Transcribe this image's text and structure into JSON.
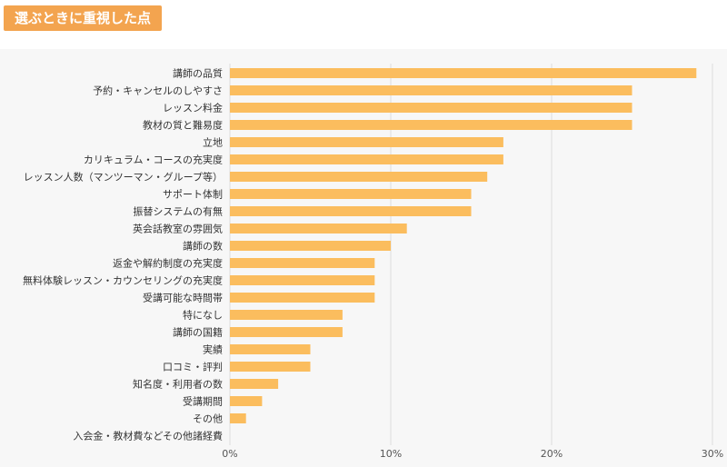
{
  "title": "選ぶときに重視した点",
  "colors": {
    "bar": "#fbbd5e",
    "title_bg": "#f3a44f",
    "grid": "#dddddd"
  },
  "chart_data": {
    "type": "bar",
    "orientation": "horizontal",
    "categories": [
      "講師の品質",
      "予約・キャンセルのしやすさ",
      "レッスン料金",
      "教材の質と難易度",
      "立地",
      "カリキュラム・コースの充実度",
      "レッスン人数（マンツーマン・グループ等）",
      "サポート体制",
      "振替システムの有無",
      "英会話教室の雰囲気",
      "講師の数",
      "返金や解約制度の充実度",
      "無料体験レッスン・カウンセリングの充実度",
      "受講可能な時間帯",
      "特になし",
      "講師の国籍",
      "実績",
      "口コミ・評判",
      "知名度・利用者の数",
      "受講期間",
      "その他",
      "入会金・教材費などその他諸経費"
    ],
    "values": [
      29,
      25,
      25,
      25,
      17,
      17,
      16,
      15,
      15,
      11,
      10,
      9,
      9,
      9,
      7,
      7,
      5,
      5,
      3,
      2,
      1,
      0
    ],
    "xlim": [
      0,
      30
    ],
    "xticks": [
      0,
      10,
      20,
      30
    ],
    "xtick_labels": [
      "0%",
      "10%",
      "20%",
      "30%"
    ],
    "grid": true,
    "legend": "none"
  }
}
